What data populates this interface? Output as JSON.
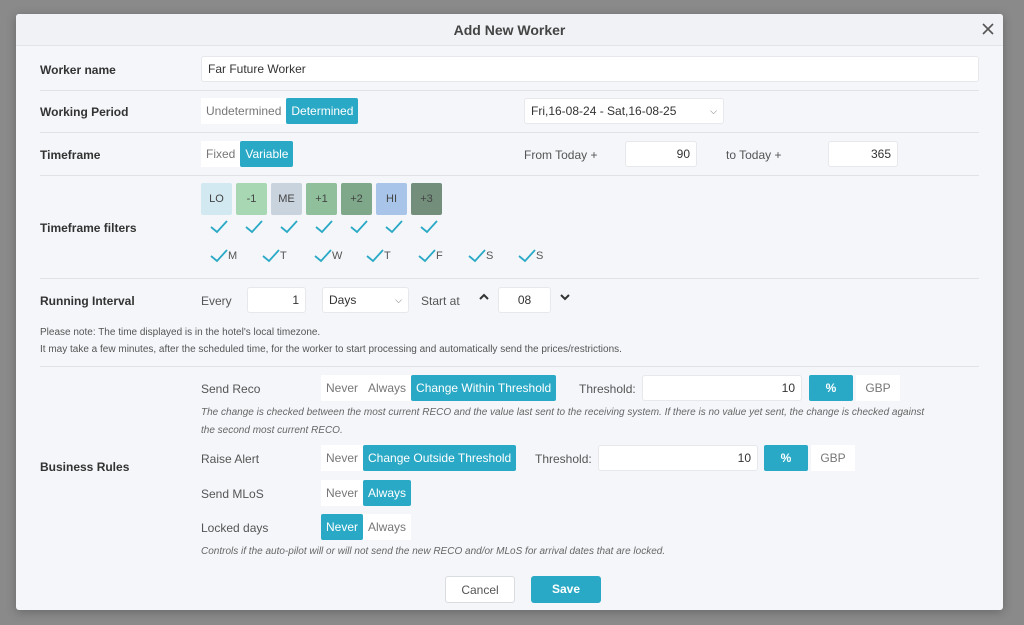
{
  "modal": {
    "title": "Add New Worker"
  },
  "worker_name": {
    "label": "Worker name",
    "value": "Far Future Worker"
  },
  "working_period": {
    "label": "Working Period",
    "options": [
      "Undetermined",
      "Determined"
    ],
    "selected": "Determined",
    "range": "Fri,16-08-24 - Sat,16-08-25"
  },
  "timeframe": {
    "label": "Timeframe",
    "options": [
      "Fixed",
      "Variable"
    ],
    "selected": "Variable",
    "from_label": "From Today +",
    "from_value": "90",
    "to_label": "to Today +",
    "to_value": "365"
  },
  "timeframe_filters": {
    "label": "Timeframe filters",
    "levels": [
      {
        "label": "LO",
        "color": "#d3e9f1"
      },
      {
        "label": "-1",
        "color": "#a8d8b3"
      },
      {
        "label": "ME",
        "color": "#c9d3dd"
      },
      {
        "label": "+1",
        "color": "#8fbf9b"
      },
      {
        "label": "+2",
        "color": "#7fa88a"
      },
      {
        "label": "HI",
        "color": "#a8c4e8"
      },
      {
        "label": "+3",
        "color": "#738f7c"
      }
    ],
    "days": [
      "M",
      "T",
      "W",
      "T",
      "F",
      "S",
      "S"
    ]
  },
  "running_interval": {
    "label": "Running Interval",
    "every_label": "Every",
    "every_value": "1",
    "unit": "Days",
    "start_label": "Start at",
    "start_value": "08"
  },
  "notes": {
    "line1": "Please note: The time displayed is in the hotel's local timezone.",
    "line2": "It may take a few minutes, after the scheduled time, for the worker to start processing and automatically send the prices/restrictions."
  },
  "business_rules": {
    "label": "Business Rules",
    "send_reco": {
      "label": "Send Reco",
      "options": [
        "Never",
        "Always",
        "Change Within Threshold"
      ],
      "selected": "Change Within Threshold",
      "threshold_label": "Threshold:",
      "threshold_value": "10",
      "unit_pct": "%",
      "unit_gbp": "GBP",
      "hint_line1": "The change is checked between the most current RECO and the value last sent to the receiving system. If there is no value yet sent, the change is checked against",
      "hint_line2": "the second most current RECO."
    },
    "raise_alert": {
      "label": "Raise Alert",
      "options": [
        "Never",
        "Change Outside Threshold"
      ],
      "selected": "Change Outside Threshold",
      "threshold_label": "Threshold:",
      "threshold_value": "10",
      "unit_pct": "%",
      "unit_gbp": "GBP"
    },
    "send_mlos": {
      "label": "Send MLoS",
      "options": [
        "Never",
        "Always"
      ],
      "selected": "Always"
    },
    "locked_days": {
      "label": "Locked days",
      "options": [
        "Never",
        "Always"
      ],
      "selected": "Never",
      "hint": "Controls if the auto-pilot will or will not send the new RECO and/or MLoS for arrival dates that are locked."
    }
  },
  "footer": {
    "cancel": "Cancel",
    "save": "Save"
  },
  "accent_color": "#2aa9c6",
  "check_color": "#2aa9c6"
}
